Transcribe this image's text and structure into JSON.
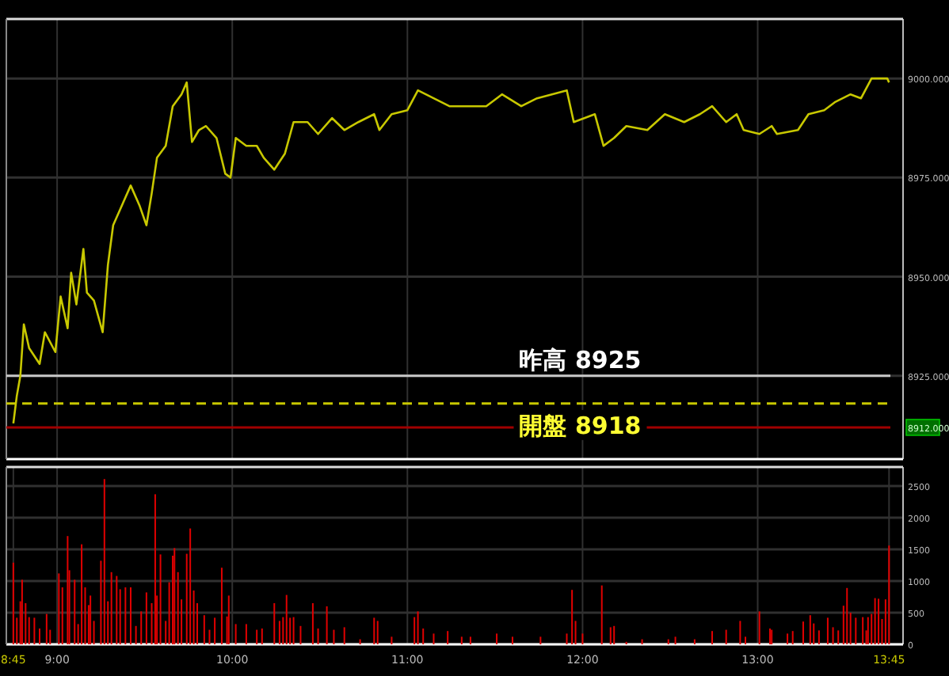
{
  "chart_data": [
    {
      "type": "line",
      "xlim": [
        8.71,
        13.83
      ],
      "ylim": [
        8904,
        9015
      ],
      "tick_labels": "y",
      "grid": true,
      "xticks": [
        9,
        10,
        11,
        12,
        13
      ],
      "yticks": [
        {
          "value": 8912,
          "label": "8912.000"
        },
        {
          "value": 8925,
          "label": "8925.000"
        },
        {
          "value": 8950,
          "label": "8950.000"
        },
        {
          "value": 8975,
          "label": "8975.000"
        },
        {
          "value": 9000,
          "label": "9000.000"
        }
      ],
      "ref_lines": [
        {
          "axis": "y",
          "value": 8925,
          "label": "昨高 8925",
          "color": "#c8c8c8"
        },
        {
          "axis": "y",
          "value": 8918,
          "label": "開盤 8918",
          "color": "#c8c800",
          "line_style": "dashed"
        },
        {
          "axis": "y",
          "value": 8912,
          "color": "#a00000"
        }
      ],
      "series": [
        {
          "color": "#c8c800",
          "x": [
            8.75,
            8.77,
            8.79,
            8.81,
            8.84,
            8.9,
            8.93,
            8.99,
            9.02,
            9.06,
            9.08,
            9.11,
            9.15,
            9.17,
            9.21,
            9.26,
            9.29,
            9.32,
            9.36,
            9.42,
            9.47,
            9.51,
            9.54,
            9.57,
            9.62,
            9.66,
            9.71,
            9.74,
            9.77,
            9.81,
            9.85,
            9.91,
            9.96,
            9.99,
            10.02,
            10.08,
            10.14,
            10.18,
            10.24,
            10.3,
            10.35,
            10.43,
            10.49,
            10.57,
            10.64,
            10.72,
            10.81,
            10.84,
            10.91,
            11.0,
            11.06,
            11.15,
            11.24,
            11.33,
            11.45,
            11.54,
            11.65,
            11.74,
            11.91,
            11.95,
            12.07,
            12.12,
            12.18,
            12.25,
            12.37,
            12.47,
            12.58,
            12.67,
            12.74,
            12.82,
            12.88,
            12.92,
            13.01,
            13.08,
            13.11,
            13.23,
            13.29,
            13.38,
            13.44,
            13.53,
            13.59,
            13.65,
            13.74,
            13.75
          ],
          "values": [
            8913,
            8920,
            8925,
            8938,
            8932,
            8928,
            8936,
            8931,
            8945,
            8937,
            8951,
            8943,
            8957,
            8946,
            8944,
            8936,
            8953,
            8963,
            8967,
            8973,
            8968,
            8963,
            8971,
            8980,
            8983,
            8993,
            8996,
            8999,
            8984,
            8987,
            8988,
            8985,
            8976,
            8975,
            8985,
            8983,
            8983,
            8980,
            8977,
            8981,
            8989,
            8989,
            8986,
            8990,
            8987,
            8989,
            8991,
            8987,
            8991,
            8992,
            8997,
            8995,
            8993,
            8993,
            8993,
            8996,
            8993,
            8995,
            8997,
            8989,
            8991,
            8983,
            8985,
            8988,
            8987,
            8991,
            8989,
            8991,
            8993,
            8989,
            8991,
            8987,
            8986,
            8988,
            8986,
            8987,
            8991,
            8992,
            8994,
            8996,
            8995,
            9000,
            9000,
            8999
          ]
        }
      ]
    },
    {
      "type": "bar",
      "xlim": [
        8.71,
        13.83
      ],
      "ylim": [
        0,
        2800
      ],
      "grid": true,
      "xticks": [
        {
          "value": 8.75,
          "label": "8:45"
        },
        {
          "value": 9,
          "label": "9:00"
        },
        {
          "value": 10,
          "label": "10:00"
        },
        {
          "value": 11,
          "label": "11:00"
        },
        {
          "value": 12,
          "label": "12:00"
        },
        {
          "value": 13,
          "label": "13:00"
        },
        {
          "value": 13.75,
          "label": "13:45"
        }
      ],
      "yticks": [
        0,
        500,
        1000,
        1500,
        2000,
        2500
      ],
      "series": [
        {
          "color": "#e00000",
          "x": [
            8.75,
            8.77,
            8.79,
            8.8,
            8.82,
            8.84,
            8.87,
            8.9,
            8.94,
            8.96,
            9.01,
            9.03,
            9.06,
            9.07,
            9.1,
            9.12,
            9.14,
            9.16,
            9.18,
            9.19,
            9.21,
            9.25,
            9.27,
            9.29,
            9.31,
            9.34,
            9.36,
            9.39,
            9.42,
            9.45,
            9.48,
            9.51,
            9.54,
            9.56,
            9.57,
            9.59,
            9.62,
            9.64,
            9.66,
            9.67,
            9.69,
            9.71,
            9.74,
            9.76,
            9.78,
            9.8,
            9.84,
            9.87,
            9.9,
            9.94,
            9.97,
            9.98,
            10.02,
            10.08,
            10.14,
            10.17,
            10.24,
            10.27,
            10.29,
            10.31,
            10.33,
            10.35,
            10.39,
            10.46,
            10.49,
            10.54,
            10.58,
            10.64,
            10.73,
            10.81,
            10.83,
            10.91,
            11.04,
            11.06,
            11.09,
            11.15,
            11.23,
            11.31,
            11.36,
            11.51,
            11.6,
            11.76,
            11.91,
            11.94,
            11.96,
            12.0,
            12.11,
            12.16,
            12.18,
            12.25,
            12.34,
            12.49,
            12.53,
            12.64,
            12.74,
            12.82,
            12.9,
            12.93,
            13.01,
            13.07,
            13.08,
            13.17,
            13.2,
            13.26,
            13.3,
            13.32,
            13.35,
            13.4,
            13.43,
            13.46,
            13.49,
            13.51,
            13.53,
            13.56,
            13.6,
            13.62,
            13.63,
            13.65,
            13.67,
            13.69,
            13.71,
            13.73,
            13.75
          ],
          "values": [
            1290,
            420,
            680,
            1020,
            650,
            430,
            420,
            250,
            480,
            230,
            1120,
            900,
            1710,
            1170,
            1020,
            320,
            1580,
            900,
            620,
            770,
            370,
            1320,
            2610,
            680,
            1140,
            1080,
            870,
            900,
            900,
            290,
            520,
            820,
            650,
            2370,
            770,
            1420,
            370,
            980,
            1400,
            1520,
            1140,
            710,
            1430,
            1830,
            850,
            650,
            460,
            230,
            420,
            1210,
            440,
            770,
            320,
            320,
            230,
            250,
            650,
            370,
            430,
            780,
            420,
            430,
            290,
            650,
            250,
            600,
            230,
            270,
            80,
            420,
            370,
            120,
            430,
            520,
            250,
            170,
            210,
            120,
            120,
            170,
            120,
            120,
            170,
            860,
            370,
            170,
            930,
            270,
            290,
            40,
            80,
            80,
            120,
            80,
            210,
            230,
            370,
            120,
            520,
            250,
            230,
            170,
            210,
            360,
            460,
            330,
            220,
            420,
            270,
            220,
            610,
            890,
            500,
            420,
            430,
            220,
            430,
            480,
            730,
            720,
            400,
            710,
            1560
          ]
        }
      ]
    }
  ]
}
